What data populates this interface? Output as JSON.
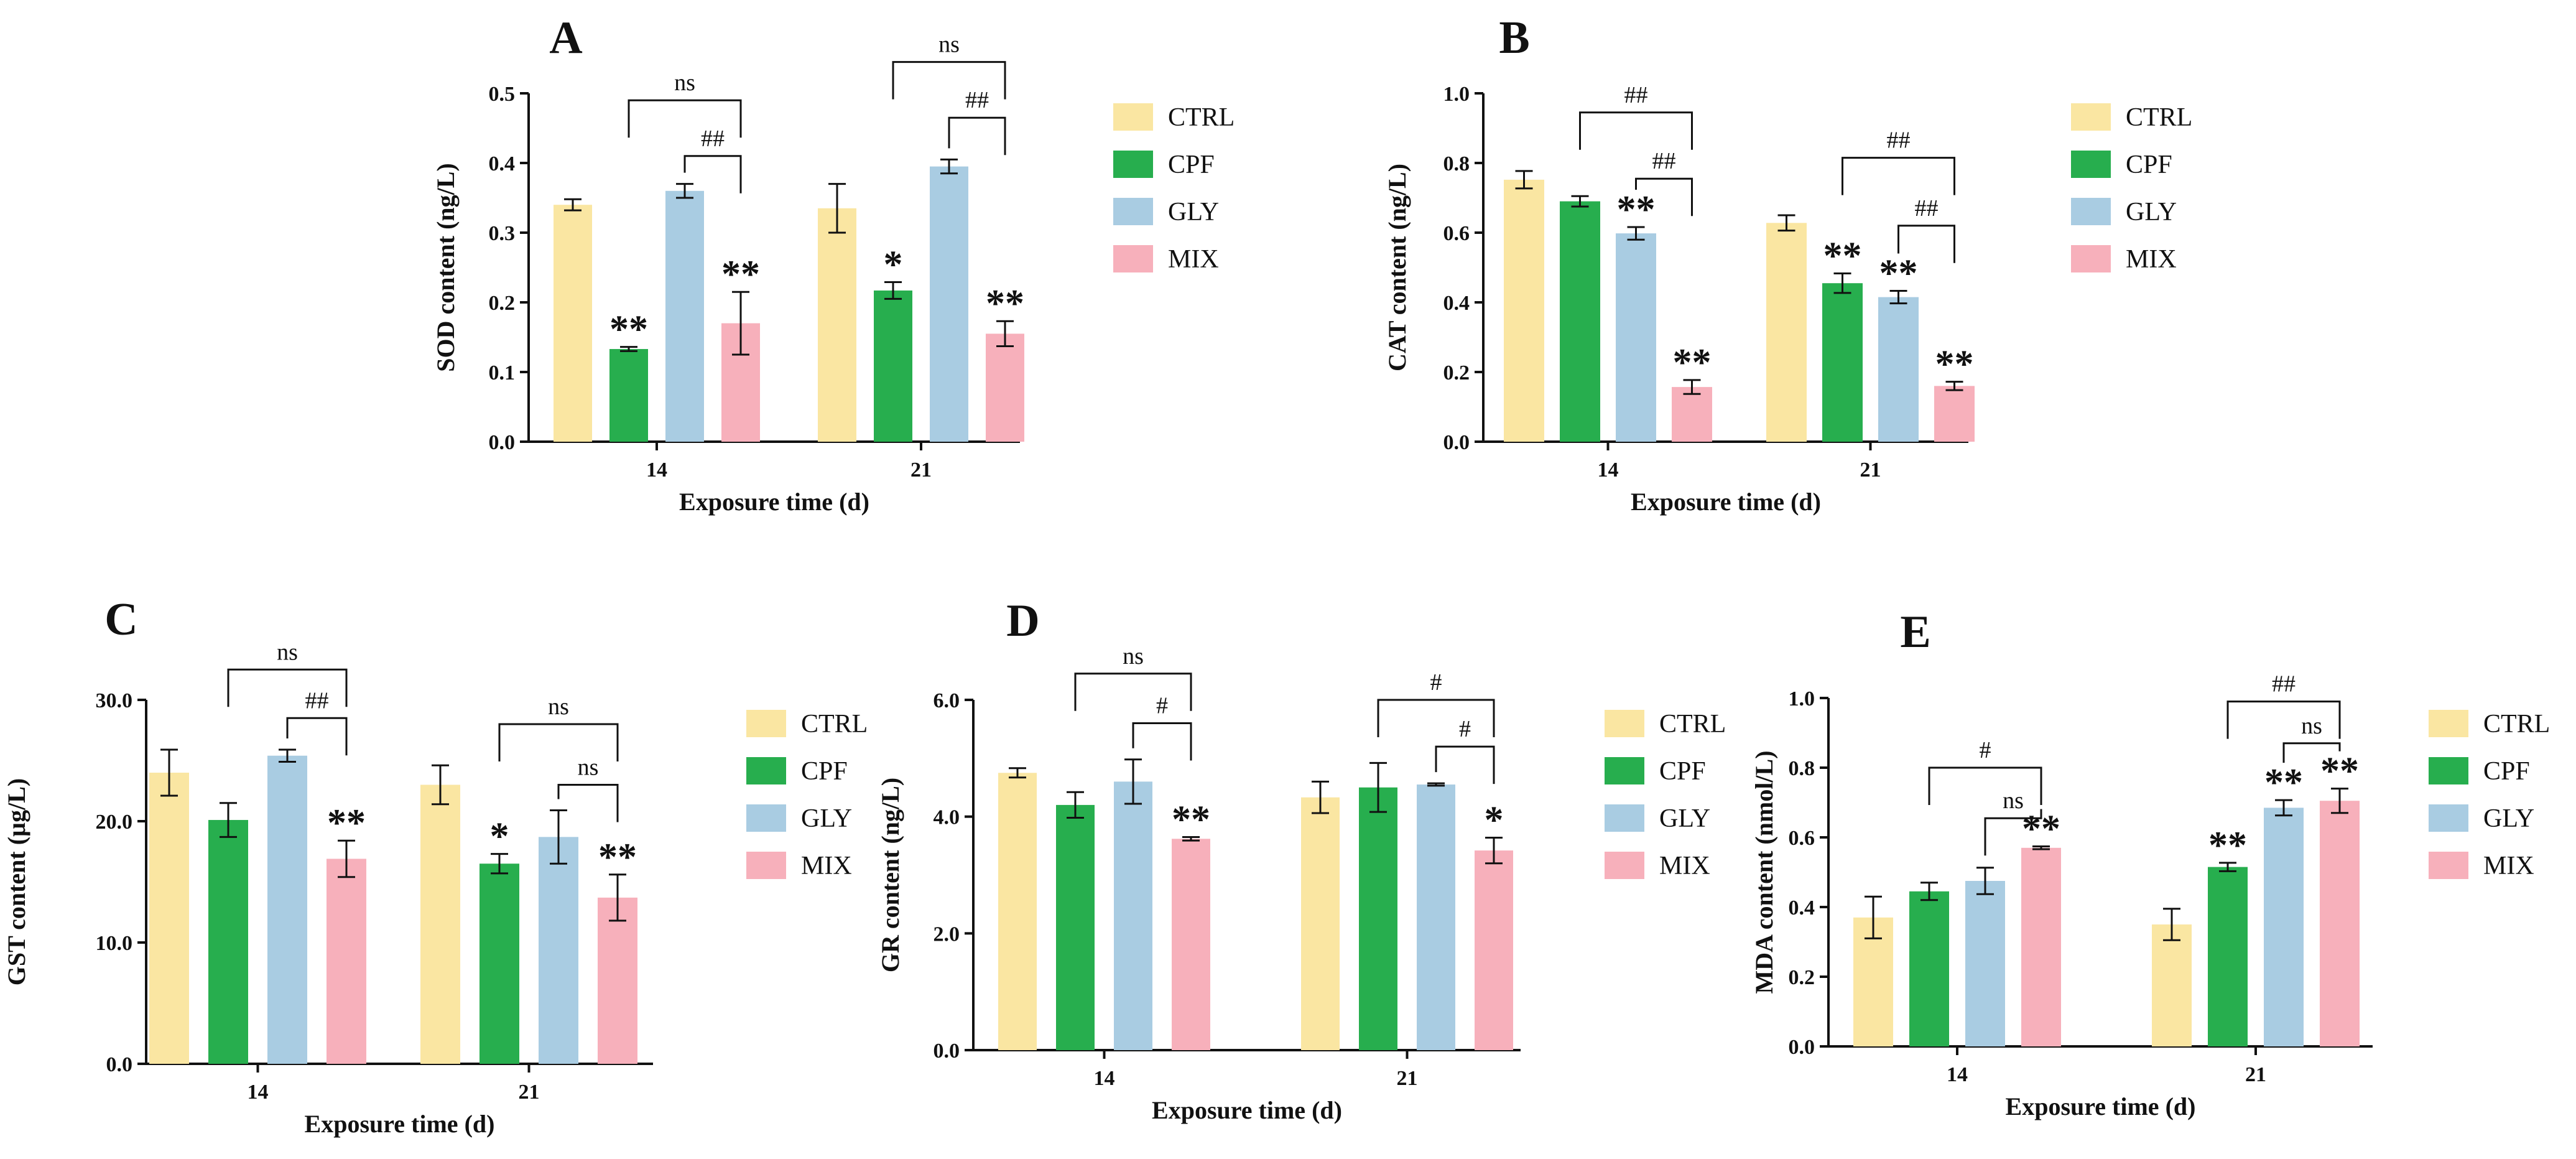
{
  "chart_data": [
    {
      "letter": "A",
      "type": "bar",
      "xlabel": "Exposure time (d)",
      "ylabel": "SOD content (ng/L)",
      "yticks": [
        "0.0",
        "0.1",
        "0.2",
        "0.3",
        "0.4",
        "0.5"
      ],
      "ylim": [
        0,
        0.5
      ],
      "categories": [
        "14",
        "21"
      ],
      "series": [
        {
          "name": "CTRL",
          "color": "#FAE6A2",
          "values": [
            0.34,
            0.335
          ],
          "errors": [
            0.008,
            0.035
          ],
          "marks": [
            "",
            ""
          ]
        },
        {
          "name": "CPF",
          "color": "#27AE4E",
          "values": [
            0.133,
            0.217
          ],
          "errors": [
            0.003,
            0.012
          ],
          "marks": [
            "**",
            "*"
          ]
        },
        {
          "name": "GLY",
          "color": "#A9CCE2",
          "values": [
            0.36,
            0.395
          ],
          "errors": [
            0.01,
            0.01
          ],
          "marks": [
            "",
            ""
          ]
        },
        {
          "name": "MIX",
          "color": "#F7B0BB",
          "values": [
            0.17,
            0.155
          ],
          "errors": [
            0.045,
            0.018
          ],
          "marks": [
            "**",
            "**"
          ]
        }
      ],
      "brackets": [
        {
          "cat": 0,
          "from": 1,
          "to": 3,
          "label": "ns",
          "level": 0.49
        },
        {
          "cat": 0,
          "from": 2,
          "to": 3,
          "label": "##",
          "level": 0.41
        },
        {
          "cat": 1,
          "from": 1,
          "to": 3,
          "label": "ns",
          "level": 0.545
        },
        {
          "cat": 1,
          "from": 2,
          "to": 3,
          "label": "##",
          "level": 0.465
        }
      ]
    },
    {
      "letter": "B",
      "type": "bar",
      "xlabel": "Exposure time (d)",
      "ylabel": "CAT content (ng/L)",
      "yticks": [
        "0.0",
        "0.2",
        "0.4",
        "0.6",
        "0.8",
        "1.0"
      ],
      "ylim": [
        0,
        1.0
      ],
      "categories": [
        "14",
        "21"
      ],
      "series": [
        {
          "name": "CTRL",
          "color": "#FAE6A2",
          "values": [
            0.752,
            0.628
          ],
          "errors": [
            0.025,
            0.022
          ],
          "marks": [
            "",
            ""
          ]
        },
        {
          "name": "CPF",
          "color": "#27AE4E",
          "values": [
            0.69,
            0.455
          ],
          "errors": [
            0.015,
            0.028
          ],
          "marks": [
            "",
            "**"
          ]
        },
        {
          "name": "GLY",
          "color": "#A9CCE2",
          "values": [
            0.598,
            0.415
          ],
          "errors": [
            0.018,
            0.018
          ],
          "marks": [
            "**",
            "**"
          ]
        },
        {
          "name": "MIX",
          "color": "#F7B0BB",
          "values": [
            0.157,
            0.16
          ],
          "errors": [
            0.02,
            0.012
          ],
          "marks": [
            "**",
            "**"
          ]
        }
      ],
      "brackets": [
        {
          "cat": 0,
          "from": 1,
          "to": 3,
          "label": "##",
          "level": 0.945
        },
        {
          "cat": 0,
          "from": 2,
          "to": 3,
          "label": "##",
          "level": 0.755
        },
        {
          "cat": 1,
          "from": 1,
          "to": 3,
          "label": "##",
          "level": 0.815
        },
        {
          "cat": 1,
          "from": 2,
          "to": 3,
          "label": "##",
          "level": 0.62
        }
      ]
    },
    {
      "letter": "C",
      "type": "bar",
      "xlabel": "Exposure time (d)",
      "ylabel": "GST content (µg/L)",
      "yticks": [
        "0.0",
        "10.0",
        "20.0",
        "30.0"
      ],
      "ylim": [
        0,
        30
      ],
      "categories": [
        "14",
        "21"
      ],
      "series": [
        {
          "name": "CTRL",
          "color": "#FAE6A2",
          "values": [
            24.0,
            23.0
          ],
          "errors": [
            1.9,
            1.6
          ],
          "marks": [
            "",
            ""
          ]
        },
        {
          "name": "CPF",
          "color": "#27AE4E",
          "values": [
            20.1,
            16.5
          ],
          "errors": [
            1.4,
            0.8
          ],
          "marks": [
            "",
            "*"
          ]
        },
        {
          "name": "GLY",
          "color": "#A9CCE2",
          "values": [
            25.4,
            18.7
          ],
          "errors": [
            0.5,
            2.2
          ],
          "marks": [
            "",
            ""
          ]
        },
        {
          "name": "MIX",
          "color": "#F7B0BB",
          "values": [
            16.9,
            13.7
          ],
          "errors": [
            1.5,
            1.9
          ],
          "marks": [
            "**",
            "**"
          ]
        }
      ],
      "brackets": [
        {
          "cat": 0,
          "from": 1,
          "to": 3,
          "label": "ns",
          "level": 32.5
        },
        {
          "cat": 0,
          "from": 2,
          "to": 3,
          "label": "##",
          "level": 28.5
        },
        {
          "cat": 1,
          "from": 1,
          "to": 3,
          "label": "ns",
          "level": 28.0
        },
        {
          "cat": 1,
          "from": 2,
          "to": 3,
          "label": "ns",
          "level": 23.0
        }
      ]
    },
    {
      "letter": "D",
      "type": "bar",
      "xlabel": "Exposure time (d)",
      "ylabel": "GR content (ng/L)",
      "yticks": [
        "0.0",
        "2.0",
        "4.0",
        "6.0"
      ],
      "ylim": [
        0,
        6.0
      ],
      "categories": [
        "14",
        "21"
      ],
      "series": [
        {
          "name": "CTRL",
          "color": "#FAE6A2",
          "values": [
            4.75,
            4.33
          ],
          "errors": [
            0.08,
            0.27
          ],
          "marks": [
            "",
            ""
          ]
        },
        {
          "name": "CPF",
          "color": "#27AE4E",
          "values": [
            4.2,
            4.5
          ],
          "errors": [
            0.22,
            0.42
          ],
          "marks": [
            "",
            ""
          ]
        },
        {
          "name": "GLY",
          "color": "#A9CCE2",
          "values": [
            4.6,
            4.55
          ],
          "errors": [
            0.38,
            0.02
          ],
          "marks": [
            "",
            ""
          ]
        },
        {
          "name": "MIX",
          "color": "#F7B0BB",
          "values": [
            3.62,
            3.42
          ],
          "errors": [
            0.03,
            0.22
          ],
          "marks": [
            "**",
            "*"
          ]
        }
      ],
      "brackets": [
        {
          "cat": 0,
          "from": 1,
          "to": 3,
          "label": "ns",
          "level": 6.45
        },
        {
          "cat": 0,
          "from": 2,
          "to": 3,
          "label": "#",
          "level": 5.6
        },
        {
          "cat": 1,
          "from": 1,
          "to": 3,
          "label": "#",
          "level": 6.0
        },
        {
          "cat": 1,
          "from": 2,
          "to": 3,
          "label": "#",
          "level": 5.2
        }
      ]
    },
    {
      "letter": "E",
      "type": "bar",
      "xlabel": "Exposure time (d)",
      "ylabel": "MDA content (nmol/L)",
      "yticks": [
        "0.0",
        "0.2",
        "0.4",
        "0.6",
        "0.8",
        "1.0"
      ],
      "ylim": [
        0,
        1.0
      ],
      "categories": [
        "14",
        "21"
      ],
      "series": [
        {
          "name": "CTRL",
          "color": "#FAE6A2",
          "values": [
            0.37,
            0.35
          ],
          "errors": [
            0.06,
            0.045
          ],
          "marks": [
            "",
            ""
          ]
        },
        {
          "name": "CPF",
          "color": "#27AE4E",
          "values": [
            0.445,
            0.515
          ],
          "errors": [
            0.025,
            0.012
          ],
          "marks": [
            "",
            "**"
          ]
        },
        {
          "name": "GLY",
          "color": "#A9CCE2",
          "values": [
            0.475,
            0.685
          ],
          "errors": [
            0.038,
            0.022
          ],
          "marks": [
            "",
            "**"
          ]
        },
        {
          "name": "MIX",
          "color": "#F7B0BB",
          "values": [
            0.57,
            0.705
          ],
          "errors": [
            0.004,
            0.035
          ],
          "marks": [
            "**",
            "**"
          ]
        }
      ],
      "brackets": [
        {
          "cat": 0,
          "from": 1,
          "to": 3,
          "label": "#",
          "level": 0.8
        },
        {
          "cat": 0,
          "from": 2,
          "to": 3,
          "label": "ns",
          "level": 0.655
        },
        {
          "cat": 1,
          "from": 1,
          "to": 3,
          "label": "##",
          "level": 0.99
        },
        {
          "cat": 1,
          "from": 2,
          "to": 3,
          "label": "ns",
          "level": 0.87
        }
      ]
    }
  ]
}
